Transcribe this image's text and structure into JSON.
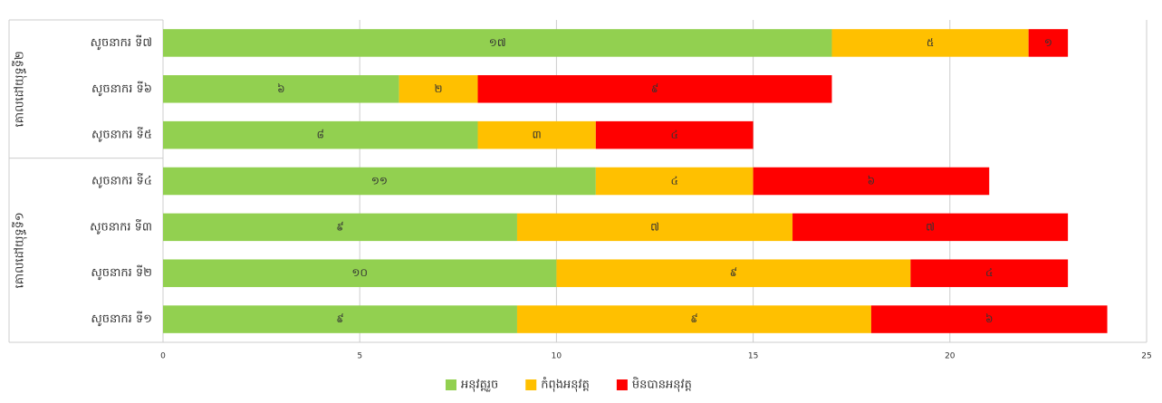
{
  "chart_data": {
    "type": "stacked-barh",
    "groups": [
      {
        "name": "គោលដៅយុទ្ធទី២",
        "categories": [
          "សូចនាករ ទី៧",
          "សូចនាករ ទី៦",
          "សូចនាករ ទី៥"
        ]
      },
      {
        "name": "គោលដៅយុទ្ធទី១",
        "categories": [
          "សូចនាករ ទី៤",
          "សូចនាករ ទី៣",
          "សូចនាករ ទី២",
          "សូចនាករ ទី១"
        ]
      }
    ],
    "series": [
      {
        "name": "អនុវត្តរួច",
        "color": "#92d050",
        "values": [
          17,
          6,
          8,
          11,
          9,
          10,
          9
        ],
        "value_labels": [
          "១៧",
          "៦",
          "៨",
          "១១",
          "៩",
          "១០",
          "៩"
        ]
      },
      {
        "name": "កំពុងអនុវត្ត",
        "color": "#ffc000",
        "values": [
          5,
          2,
          3,
          4,
          7,
          9,
          9
        ],
        "value_labels": [
          "៥",
          "២",
          "៣",
          "៤",
          "៧",
          "៩",
          "៩"
        ]
      },
      {
        "name": "មិនបានអនុវត្ត",
        "color": "#ff0000",
        "values": [
          1,
          9,
          4,
          6,
          7,
          4,
          6
        ],
        "value_labels": [
          "១",
          "៩",
          "៤",
          "៦",
          "៧",
          "៤",
          "៦"
        ]
      }
    ],
    "xlim": [
      0,
      25
    ],
    "xticks": [
      0,
      5,
      10,
      15,
      20,
      25
    ],
    "grid": true,
    "legend": "bottom"
  }
}
